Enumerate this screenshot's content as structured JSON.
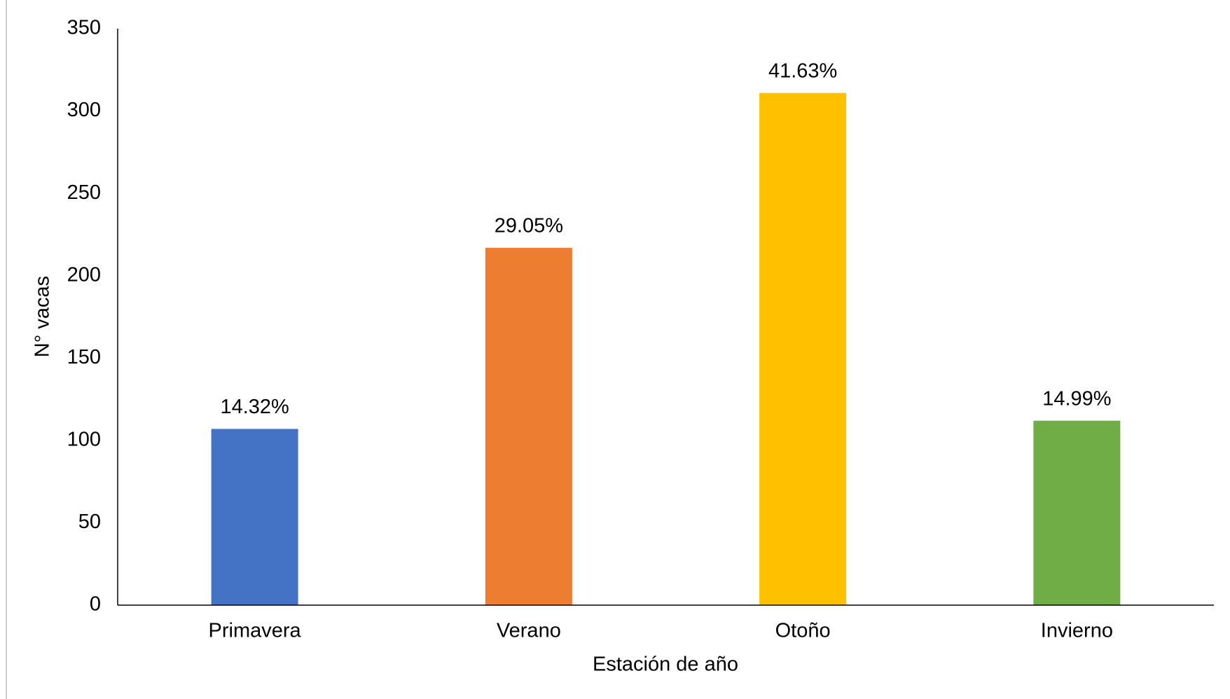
{
  "chart_data": {
    "type": "bar",
    "xlabel": "Estación de año",
    "ylabel": "N° vacas",
    "categories": [
      "Primavera",
      "Verano",
      "Otoño",
      "Invierno"
    ],
    "values": [
      107,
      217,
      311,
      112
    ],
    "annotations": [
      "14.32%",
      "29.05%",
      "41.63%",
      "14.99%"
    ],
    "colors": [
      "#4472c4",
      "#ed7d31",
      "#ffc000",
      "#70ad47"
    ],
    "ylim": [
      0,
      350
    ],
    "yticks": [
      0,
      50,
      100,
      150,
      200,
      250,
      300,
      350
    ],
    "grid": false
  }
}
